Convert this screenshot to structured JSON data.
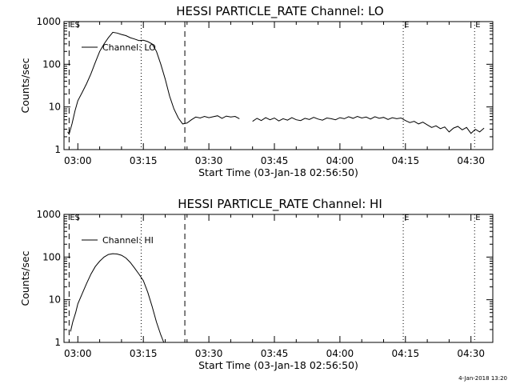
{
  "page": {
    "timestamp": "4-Jan-2018 13:20"
  },
  "chart_data": [
    {
      "type": "line",
      "title": "HESSI PARTICLE_RATE Channel: LO",
      "xlabel": "Start Time (03-Jan-18 02:56:50)",
      "ylabel": "Counts/sec",
      "yscale": "log",
      "ylim": [
        1,
        1000
      ],
      "yticks": [
        1,
        10,
        100,
        1000
      ],
      "ytick_labels": [
        "1",
        "10",
        "100",
        "1000"
      ],
      "xlim": [
        "02:56:50",
        "04:35:00"
      ],
      "xticks": [
        "03:00",
        "03:15",
        "03:30",
        "03:45",
        "04:00",
        "04:15",
        "04:30"
      ],
      "legend": {
        "position": "top-left",
        "entries": [
          "Channel: LO"
        ]
      },
      "grid": false,
      "event_markers": [
        {
          "time": "02:58:00",
          "style": "dashed",
          "label": "ES"
        },
        {
          "time": "03:14:30",
          "style": "dotted",
          "label": ""
        },
        {
          "time": "03:24:30",
          "style": "dashed",
          "label": ""
        },
        {
          "time": "04:14:30",
          "style": "dotted",
          "label": "E"
        },
        {
          "time": "04:30:50",
          "style": "dotted",
          "label": "E"
        }
      ],
      "series": [
        {
          "name": "Channel: LO",
          "segments": [
            [
              [
                "02:57:40",
                2.6
              ],
              [
                "02:58:00",
                2.3
              ],
              [
                "02:58:40",
                4
              ],
              [
                "02:59:20",
                8
              ],
              [
                "03:00:00",
                14
              ],
              [
                "03:01:00",
                22
              ],
              [
                "03:02:00",
                35
              ],
              [
                "03:03:00",
                60
              ],
              [
                "03:04:00",
                110
              ],
              [
                "03:05:00",
                200
              ],
              [
                "03:06:00",
                300
              ],
              [
                "03:07:00",
                420
              ],
              [
                "03:08:00",
                560
              ],
              [
                "03:09:00",
                540
              ],
              [
                "03:10:00",
                500
              ],
              [
                "03:11:00",
                470
              ],
              [
                "03:12:00",
                420
              ],
              [
                "03:13:00",
                390
              ],
              [
                "03:14:00",
                360
              ],
              [
                "03:15:00",
                365
              ],
              [
                "03:16:00",
                340
              ],
              [
                "03:17:00",
                300
              ],
              [
                "03:18:00",
                200
              ],
              [
                "03:19:00",
                100
              ],
              [
                "03:20:00",
                45
              ],
              [
                "03:21:00",
                18
              ],
              [
                "03:22:00",
                9
              ],
              [
                "03:23:00",
                5.5
              ],
              [
                "03:24:00",
                4.0
              ],
              [
                "03:25:00",
                4.2
              ],
              [
                "03:26:00",
                5.0
              ],
              [
                "03:27:00",
                5.8
              ],
              [
                "03:28:00",
                5.5
              ],
              [
                "03:29:00",
                6.0
              ],
              [
                "03:30:00",
                5.6
              ],
              [
                "03:31:00",
                5.9
              ],
              [
                "03:32:00",
                6.2
              ],
              [
                "03:33:00",
                5.4
              ],
              [
                "03:34:00",
                6.1
              ],
              [
                "03:35:00",
                5.8
              ],
              [
                "03:36:00",
                6.0
              ],
              [
                "03:37:00",
                5.3
              ]
            ],
            [
              [
                "03:40:00",
                4.6
              ],
              [
                "03:41:00",
                5.4
              ],
              [
                "03:42:00",
                4.8
              ],
              [
                "03:43:00",
                5.6
              ],
              [
                "03:44:00",
                5.0
              ],
              [
                "03:45:00",
                5.5
              ],
              [
                "03:46:00",
                4.7
              ],
              [
                "03:47:00",
                5.3
              ],
              [
                "03:48:00",
                4.9
              ],
              [
                "03:49:00",
                5.6
              ],
              [
                "03:50:00",
                5.0
              ],
              [
                "03:51:00",
                4.8
              ],
              [
                "03:52:00",
                5.4
              ],
              [
                "03:53:00",
                5.1
              ],
              [
                "03:54:00",
                5.7
              ],
              [
                "03:55:00",
                5.2
              ],
              [
                "03:56:00",
                4.9
              ],
              [
                "03:57:00",
                5.5
              ],
              [
                "03:58:00",
                5.3
              ],
              [
                "03:59:00",
                5.0
              ],
              [
                "04:00:00",
                5.6
              ],
              [
                "04:01:00",
                5.3
              ],
              [
                "04:02:00",
                5.9
              ],
              [
                "04:03:00",
                5.4
              ],
              [
                "04:04:00",
                6.0
              ],
              [
                "04:05:00",
                5.5
              ],
              [
                "04:06:00",
                5.8
              ],
              [
                "04:07:00",
                5.2
              ],
              [
                "04:08:00",
                5.9
              ],
              [
                "04:09:00",
                5.4
              ],
              [
                "04:10:00",
                5.7
              ],
              [
                "04:11:00",
                5.1
              ],
              [
                "04:12:00",
                5.6
              ],
              [
                "04:13:00",
                5.3
              ],
              [
                "04:14:00",
                5.5
              ],
              [
                "04:15:00",
                4.8
              ],
              [
                "04:16:00",
                4.3
              ],
              [
                "04:17:00",
                4.6
              ],
              [
                "04:18:00",
                4.0
              ],
              [
                "04:19:00",
                4.4
              ],
              [
                "04:20:00",
                3.8
              ],
              [
                "04:21:00",
                3.3
              ],
              [
                "04:22:00",
                3.6
              ],
              [
                "04:23:00",
                3.1
              ],
              [
                "04:24:00",
                3.4
              ],
              [
                "04:25:00",
                2.6
              ],
              [
                "04:26:00",
                3.2
              ],
              [
                "04:27:00",
                3.5
              ],
              [
                "04:28:00",
                2.9
              ],
              [
                "04:29:00",
                3.3
              ],
              [
                "04:30:00",
                2.4
              ],
              [
                "04:31:00",
                3.0
              ],
              [
                "04:32:00",
                2.6
              ],
              [
                "04:33:00",
                3.2
              ]
            ]
          ]
        }
      ]
    },
    {
      "type": "line",
      "title": "HESSI PARTICLE_RATE Channel: HI",
      "xlabel": "Start Time (03-Jan-18 02:56:50)",
      "ylabel": "Counts/sec",
      "yscale": "log",
      "ylim": [
        1,
        1000
      ],
      "yticks": [
        1,
        10,
        100,
        1000
      ],
      "ytick_labels": [
        "1",
        "10",
        "100",
        "1000"
      ],
      "xlim": [
        "02:56:50",
        "04:35:00"
      ],
      "xticks": [
        "03:00",
        "03:15",
        "03:30",
        "03:45",
        "04:00",
        "04:15",
        "04:30"
      ],
      "legend": {
        "position": "top-left",
        "entries": [
          "Channel: HI"
        ]
      },
      "grid": false,
      "event_markers": [
        {
          "time": "02:58:00",
          "style": "dashed",
          "label": "ES"
        },
        {
          "time": "03:14:30",
          "style": "dotted",
          "label": ""
        },
        {
          "time": "03:24:30",
          "style": "dashed",
          "label": ""
        },
        {
          "time": "04:14:30",
          "style": "dotted",
          "label": "E"
        },
        {
          "time": "04:30:50",
          "style": "dotted",
          "label": "E"
        }
      ],
      "series": [
        {
          "name": "Channel: HI",
          "segments": [
            [
              [
                "02:58:20",
                1.8
              ],
              [
                "02:58:50",
                3
              ],
              [
                "02:59:30",
                5
              ],
              [
                "03:00:00",
                8
              ],
              [
                "03:01:00",
                14
              ],
              [
                "03:02:00",
                24
              ],
              [
                "03:03:00",
                40
              ],
              [
                "03:04:00",
                60
              ],
              [
                "03:05:00",
                80
              ],
              [
                "03:06:00",
                100
              ],
              [
                "03:07:00",
                115
              ],
              [
                "03:08:00",
                120
              ],
              [
                "03:09:00",
                118
              ],
              [
                "03:10:00",
                110
              ],
              [
                "03:11:00",
                95
              ],
              [
                "03:12:00",
                75
              ],
              [
                "03:13:00",
                55
              ],
              [
                "03:14:00",
                40
              ],
              [
                "03:15:00",
                28
              ],
              [
                "03:16:00",
                15
              ],
              [
                "03:17:00",
                7
              ],
              [
                "03:18:00",
                3
              ],
              [
                "03:19:00",
                1.5
              ],
              [
                "03:19:40",
                1.0
              ]
            ]
          ]
        }
      ]
    }
  ]
}
